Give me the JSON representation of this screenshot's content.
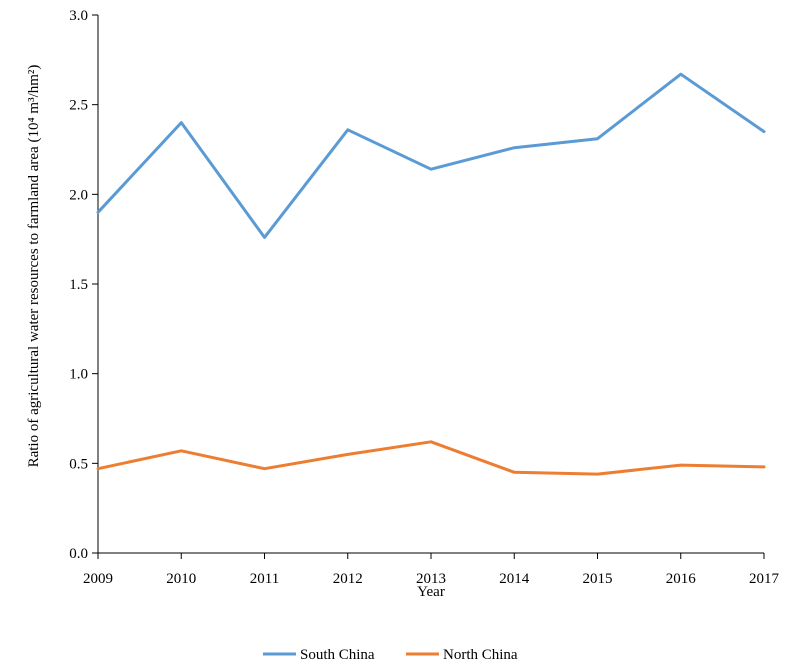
{
  "chart_data": {
    "type": "line",
    "title": "",
    "xlabel": "Year",
    "ylabel": "Ratio of agricultural water resources to farmland area (10⁴ m³/hm²)",
    "x": [
      "2009",
      "2010",
      "2011",
      "2012",
      "2013",
      "2014",
      "2015",
      "2016",
      "2017"
    ],
    "ylim": [
      0,
      3
    ],
    "yticks": [
      "0.0",
      "0.5",
      "1.0",
      "1.5",
      "2.0",
      "2.5",
      "3.0"
    ],
    "grid": false,
    "legend_position": "bottom",
    "series": [
      {
        "name": "South China",
        "color": "#5b9bd5",
        "values": [
          1.9,
          2.4,
          1.76,
          2.36,
          2.14,
          2.26,
          2.31,
          2.67,
          2.35
        ]
      },
      {
        "name": "North China",
        "color": "#ed7d31",
        "values": [
          0.47,
          0.57,
          0.47,
          0.55,
          0.62,
          0.45,
          0.44,
          0.49,
          0.48
        ]
      }
    ]
  }
}
